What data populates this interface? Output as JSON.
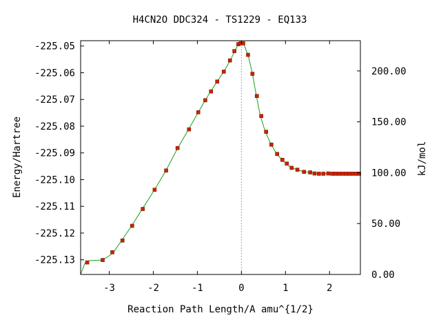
{
  "chart_data": {
    "type": "line",
    "title": "H4CN2O   DDC324 - TS1229 - EQ133",
    "xlabel": "Reaction Path Length/A amu^{1/2}",
    "ylabel": "Energy/Hartree",
    "y2label": "kJ/mol",
    "xlim": [
      -3.65,
      2.7
    ],
    "ylim": [
      -225.1355,
      -225.048
    ],
    "x_ticks": [
      -3,
      -2,
      -1,
      0,
      1,
      2
    ],
    "x_tick_labels": [
      "-3",
      "-2",
      "-1",
      "0",
      "1",
      "2"
    ],
    "y_ticks": [
      -225.05,
      -225.06,
      -225.07,
      -225.08,
      -225.09,
      -225.1,
      -225.11,
      -225.12,
      -225.13
    ],
    "y_tick_labels": [
      "-225.05",
      "-225.06",
      "-225.07",
      "-225.08",
      "-225.09",
      "-225.10",
      "-225.11",
      "-225.12",
      "-225.13"
    ],
    "y2_ticks": [
      0,
      50,
      100,
      150,
      200
    ],
    "y2_tick_labels": [
      "0.00",
      "50.00",
      "100.00",
      "150.00",
      "200.00"
    ],
    "y2_zero_energy": -225.1355,
    "hartree_to_kj": 2625.5,
    "ts_x": 0,
    "grid": false,
    "series": [
      {
        "color": "#18a018",
        "points": [
          [
            -3.65,
            -225.1355
          ],
          [
            -3.55,
            -225.1312
          ],
          [
            -3.45,
            -225.1303
          ],
          [
            -3.3,
            -225.1302
          ],
          [
            -3.15,
            -225.1301
          ],
          [
            -3.0,
            -225.1285
          ],
          [
            -2.9,
            -225.1271
          ],
          [
            -2.72,
            -225.1228
          ],
          [
            -2.5,
            -225.1175
          ],
          [
            -2.25,
            -225.111
          ],
          [
            -1.98,
            -225.104
          ],
          [
            -1.72,
            -225.0968
          ],
          [
            -1.45,
            -225.0883
          ],
          [
            -1.2,
            -225.0812
          ],
          [
            -0.98,
            -225.0748
          ],
          [
            -0.82,
            -225.0703
          ],
          [
            -0.7,
            -225.067
          ],
          [
            -0.55,
            -225.0633
          ],
          [
            -0.4,
            -225.0596
          ],
          [
            -0.25,
            -225.0553
          ],
          [
            -0.15,
            -225.0518
          ],
          [
            -0.07,
            -225.0493
          ],
          [
            0.0,
            -225.0488
          ],
          [
            0.05,
            -225.0492
          ],
          [
            0.15,
            -225.0533
          ],
          [
            0.25,
            -225.0604
          ],
          [
            0.34,
            -225.0687
          ],
          [
            0.43,
            -225.0762
          ],
          [
            0.54,
            -225.082
          ],
          [
            0.67,
            -225.0868
          ],
          [
            0.8,
            -225.0904
          ],
          [
            0.92,
            -225.0926
          ],
          [
            1.02,
            -225.094
          ],
          [
            1.12,
            -225.0955
          ],
          [
            1.25,
            -225.0962
          ],
          [
            1.4,
            -225.097
          ],
          [
            1.55,
            -225.0973
          ],
          [
            1.65,
            -225.0977
          ],
          [
            1.8,
            -225.0978
          ],
          [
            1.95,
            -225.0977
          ],
          [
            2.05,
            -225.0978
          ],
          [
            2.15,
            -225.0978
          ],
          [
            2.25,
            -225.0978
          ],
          [
            2.35,
            -225.0978
          ],
          [
            2.45,
            -225.0978
          ],
          [
            2.55,
            -225.0978
          ],
          [
            2.65,
            -225.0978
          ],
          [
            2.7,
            -225.0978
          ]
        ],
        "markers": [
          [
            -3.5,
            -225.131
          ],
          [
            -3.15,
            -225.1301
          ],
          [
            -2.93,
            -225.1272
          ],
          [
            -2.7,
            -225.1228
          ],
          [
            -2.48,
            -225.1173
          ],
          [
            -2.24,
            -225.111
          ],
          [
            -1.97,
            -225.1038
          ],
          [
            -1.71,
            -225.0966
          ],
          [
            -1.45,
            -225.0882
          ],
          [
            -1.19,
            -225.0812
          ],
          [
            -0.98,
            -225.0748
          ],
          [
            -0.82,
            -225.0703
          ],
          [
            -0.69,
            -225.067
          ],
          [
            -0.55,
            -225.0633
          ],
          [
            -0.4,
            -225.0596
          ],
          [
            -0.26,
            -225.0554
          ],
          [
            -0.16,
            -225.0519
          ],
          [
            -0.07,
            -225.0493
          ],
          [
            -0.02,
            -225.049
          ],
          [
            0.04,
            -225.049
          ],
          [
            0.15,
            -225.0533
          ],
          [
            0.25,
            -225.0604
          ],
          [
            0.35,
            -225.0687
          ],
          [
            0.45,
            -225.0762
          ],
          [
            0.56,
            -225.0821
          ],
          [
            0.68,
            -225.0869
          ],
          [
            0.81,
            -225.0904
          ],
          [
            0.93,
            -225.0926
          ],
          [
            1.03,
            -225.094
          ],
          [
            1.14,
            -225.0956
          ],
          [
            1.27,
            -225.0963
          ],
          [
            1.42,
            -225.0971
          ],
          [
            1.56,
            -225.0973
          ],
          [
            1.66,
            -225.0977
          ],
          [
            1.76,
            -225.0978
          ],
          [
            1.86,
            -225.0978
          ],
          [
            1.97,
            -225.0977
          ],
          [
            2.06,
            -225.0978
          ],
          [
            2.14,
            -225.0978
          ],
          [
            2.22,
            -225.0978
          ],
          [
            2.3,
            -225.0978
          ],
          [
            2.38,
            -225.0978
          ],
          [
            2.45,
            -225.0978
          ],
          [
            2.52,
            -225.0978
          ],
          [
            2.6,
            -225.0978
          ],
          [
            2.67,
            -225.0978
          ]
        ]
      }
    ]
  }
}
